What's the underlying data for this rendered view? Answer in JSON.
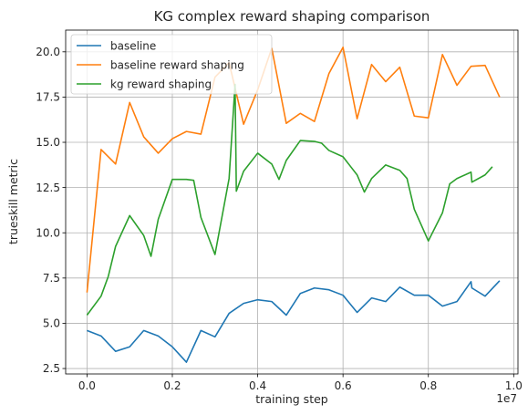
{
  "chart_data": {
    "type": "line",
    "title": "KG complex reward shaping comparison",
    "xlabel": "training step",
    "ylabel": "trueskill metric",
    "x_offset_label": "1e7",
    "xlim": [
      -0.05,
      1.01
    ],
    "ylim": [
      2.2,
      21.2
    ],
    "x_ticks": [
      0.0,
      0.2,
      0.4,
      0.6,
      0.8,
      1.0
    ],
    "x_tick_labels": [
      "0.0",
      "0.2",
      "0.4",
      "0.6",
      "0.8",
      "1.0"
    ],
    "y_ticks": [
      2.5,
      5.0,
      7.5,
      10.0,
      12.5,
      15.0,
      17.5,
      20.0
    ],
    "y_tick_labels": [
      "2.5",
      "5.0",
      "7.5",
      "10.0",
      "12.5",
      "15.0",
      "17.5",
      "20.0"
    ],
    "grid": true,
    "legend_position": "top-left",
    "series": [
      {
        "name": "baseline",
        "color": "#1f77b4",
        "points": [
          [
            0.0,
            4.6
          ],
          [
            0.033,
            4.3
          ],
          [
            0.067,
            3.45
          ],
          [
            0.1,
            3.7
          ],
          [
            0.133,
            4.6
          ],
          [
            0.167,
            4.3
          ],
          [
            0.2,
            3.7
          ],
          [
            0.233,
            2.85
          ],
          [
            0.267,
            4.6
          ],
          [
            0.3,
            4.25
          ],
          [
            0.333,
            5.55
          ],
          [
            0.367,
            6.1
          ],
          [
            0.4,
            6.3
          ],
          [
            0.433,
            6.2
          ],
          [
            0.467,
            5.45
          ],
          [
            0.5,
            6.65
          ],
          [
            0.533,
            6.95
          ],
          [
            0.567,
            6.85
          ],
          [
            0.6,
            6.55
          ],
          [
            0.633,
            5.6
          ],
          [
            0.667,
            6.4
          ],
          [
            0.7,
            6.2
          ],
          [
            0.733,
            7.0
          ],
          [
            0.767,
            6.55
          ],
          [
            0.8,
            6.55
          ],
          [
            0.833,
            5.95
          ],
          [
            0.867,
            6.2
          ],
          [
            0.9,
            7.3
          ],
          [
            0.902,
            6.95
          ],
          [
            0.933,
            6.5
          ],
          [
            0.967,
            7.35
          ]
        ]
      },
      {
        "name": "baseline reward shaping",
        "color": "#ff7f0e",
        "points": [
          [
            0.0,
            6.7
          ],
          [
            0.033,
            14.6
          ],
          [
            0.067,
            13.8
          ],
          [
            0.1,
            17.2
          ],
          [
            0.133,
            15.3
          ],
          [
            0.167,
            14.4
          ],
          [
            0.2,
            15.2
          ],
          [
            0.233,
            15.6
          ],
          [
            0.267,
            15.45
          ],
          [
            0.3,
            18.6
          ],
          [
            0.333,
            19.4
          ],
          [
            0.367,
            16.0
          ],
          [
            0.4,
            17.9
          ],
          [
            0.433,
            20.2
          ],
          [
            0.467,
            16.05
          ],
          [
            0.5,
            16.6
          ],
          [
            0.533,
            16.15
          ],
          [
            0.567,
            18.8
          ],
          [
            0.6,
            20.25
          ],
          [
            0.633,
            16.3
          ],
          [
            0.667,
            19.3
          ],
          [
            0.7,
            18.35
          ],
          [
            0.733,
            19.15
          ],
          [
            0.767,
            16.45
          ],
          [
            0.8,
            16.35
          ],
          [
            0.833,
            19.85
          ],
          [
            0.867,
            18.15
          ],
          [
            0.9,
            19.2
          ],
          [
            0.933,
            19.25
          ],
          [
            0.967,
            17.5
          ]
        ]
      },
      {
        "name": "kg reward shaping",
        "color": "#2ca02c",
        "points": [
          [
            0.0,
            5.45
          ],
          [
            0.033,
            6.5
          ],
          [
            0.05,
            7.6
          ],
          [
            0.067,
            9.25
          ],
          [
            0.1,
            10.95
          ],
          [
            0.133,
            9.85
          ],
          [
            0.15,
            8.7
          ],
          [
            0.167,
            10.75
          ],
          [
            0.2,
            12.95
          ],
          [
            0.233,
            12.95
          ],
          [
            0.25,
            12.9
          ],
          [
            0.267,
            10.85
          ],
          [
            0.3,
            8.8
          ],
          [
            0.333,
            13.0
          ],
          [
            0.347,
            18.2
          ],
          [
            0.35,
            12.3
          ],
          [
            0.367,
            13.4
          ],
          [
            0.4,
            14.4
          ],
          [
            0.433,
            13.8
          ],
          [
            0.45,
            12.95
          ],
          [
            0.467,
            14.0
          ],
          [
            0.5,
            15.1
          ],
          [
            0.533,
            15.05
          ],
          [
            0.55,
            14.95
          ],
          [
            0.567,
            14.55
          ],
          [
            0.6,
            14.2
          ],
          [
            0.633,
            13.2
          ],
          [
            0.65,
            12.25
          ],
          [
            0.667,
            13.0
          ],
          [
            0.7,
            13.75
          ],
          [
            0.733,
            13.45
          ],
          [
            0.75,
            13.0
          ],
          [
            0.767,
            11.3
          ],
          [
            0.8,
            9.55
          ],
          [
            0.833,
            11.1
          ],
          [
            0.85,
            12.7
          ],
          [
            0.867,
            13.0
          ],
          [
            0.9,
            13.35
          ],
          [
            0.902,
            12.8
          ],
          [
            0.933,
            13.2
          ],
          [
            0.95,
            13.65
          ]
        ]
      }
    ]
  }
}
